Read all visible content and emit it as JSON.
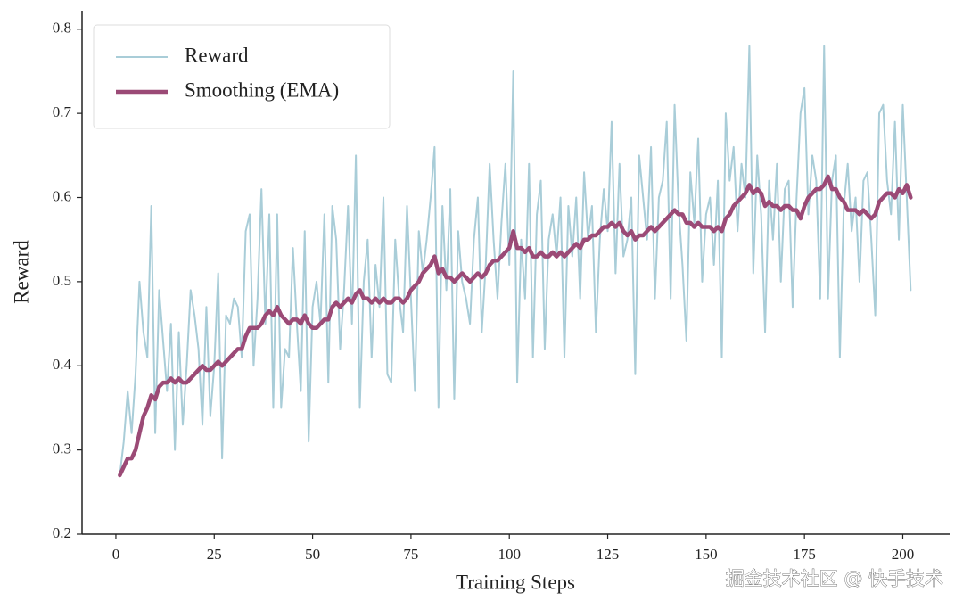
{
  "chart_data": {
    "type": "line",
    "xlabel": "Training Steps",
    "ylabel": "Reward",
    "watermark": "掘金技术社区 @ 快手技术",
    "legend": "upper left",
    "xlim": [
      -8.6,
      211.9
    ],
    "ylim": [
      0.2,
      0.822
    ],
    "xticks": [
      0,
      25,
      50,
      75,
      100,
      125,
      150,
      175,
      200
    ],
    "yticks": [
      0.2,
      0.3,
      0.4,
      0.5,
      0.6,
      0.7,
      0.8
    ],
    "x": [
      1,
      2,
      3,
      4,
      5,
      6,
      7,
      8,
      9,
      10,
      11,
      12,
      13,
      14,
      15,
      16,
      17,
      18,
      19,
      20,
      21,
      22,
      23,
      24,
      25,
      26,
      27,
      28,
      29,
      30,
      31,
      32,
      33,
      34,
      35,
      36,
      37,
      38,
      39,
      40,
      41,
      42,
      43,
      44,
      45,
      46,
      47,
      48,
      49,
      50,
      51,
      52,
      53,
      54,
      55,
      56,
      57,
      58,
      59,
      60,
      61,
      62,
      63,
      64,
      65,
      66,
      67,
      68,
      69,
      70,
      71,
      72,
      73,
      74,
      75,
      76,
      77,
      78,
      79,
      80,
      81,
      82,
      83,
      84,
      85,
      86,
      87,
      88,
      89,
      90,
      91,
      92,
      93,
      94,
      95,
      96,
      97,
      98,
      99,
      100,
      101,
      102,
      103,
      104,
      105,
      106,
      107,
      108,
      109,
      110,
      111,
      112,
      113,
      114,
      115,
      116,
      117,
      118,
      119,
      120,
      121,
      122,
      123,
      124,
      125,
      126,
      127,
      128,
      129,
      130,
      131,
      132,
      133,
      134,
      135,
      136,
      137,
      138,
      139,
      140,
      141,
      142,
      143,
      144,
      145,
      146,
      147,
      148,
      149,
      150,
      151,
      152,
      153,
      154,
      155,
      156,
      157,
      158,
      159,
      160,
      161,
      162,
      163,
      164,
      165,
      166,
      167,
      168,
      169,
      170,
      171,
      172,
      173,
      174,
      175,
      176,
      177,
      178,
      179,
      180,
      181,
      182,
      183,
      184,
      185,
      186,
      187,
      188,
      189,
      190,
      191,
      192,
      193,
      194,
      195,
      196,
      197,
      198,
      199,
      200,
      201,
      202
    ],
    "series": [
      {
        "name": "Reward",
        "color": "#a9cdd8",
        "width": 2,
        "values": [
          0.27,
          0.31,
          0.37,
          0.32,
          0.39,
          0.5,
          0.44,
          0.41,
          0.59,
          0.32,
          0.49,
          0.43,
          0.37,
          0.45,
          0.3,
          0.44,
          0.33,
          0.4,
          0.49,
          0.46,
          0.42,
          0.33,
          0.47,
          0.34,
          0.4,
          0.51,
          0.29,
          0.46,
          0.45,
          0.48,
          0.47,
          0.41,
          0.56,
          0.58,
          0.4,
          0.48,
          0.61,
          0.45,
          0.58,
          0.35,
          0.58,
          0.35,
          0.42,
          0.41,
          0.54,
          0.45,
          0.37,
          0.56,
          0.31,
          0.47,
          0.5,
          0.45,
          0.58,
          0.38,
          0.59,
          0.55,
          0.42,
          0.49,
          0.59,
          0.45,
          0.65,
          0.35,
          0.5,
          0.55,
          0.41,
          0.52,
          0.47,
          0.6,
          0.39,
          0.38,
          0.55,
          0.48,
          0.44,
          0.59,
          0.48,
          0.37,
          0.56,
          0.51,
          0.55,
          0.6,
          0.66,
          0.35,
          0.59,
          0.49,
          0.61,
          0.36,
          0.56,
          0.5,
          0.48,
          0.45,
          0.55,
          0.6,
          0.44,
          0.52,
          0.64,
          0.55,
          0.48,
          0.57,
          0.64,
          0.52,
          0.75,
          0.38,
          0.55,
          0.48,
          0.64,
          0.41,
          0.58,
          0.62,
          0.42,
          0.55,
          0.58,
          0.53,
          0.6,
          0.41,
          0.59,
          0.53,
          0.6,
          0.48,
          0.63,
          0.55,
          0.59,
          0.44,
          0.55,
          0.61,
          0.56,
          0.69,
          0.51,
          0.64,
          0.53,
          0.55,
          0.6,
          0.39,
          0.65,
          0.6,
          0.55,
          0.66,
          0.48,
          0.6,
          0.62,
          0.69,
          0.48,
          0.71,
          0.59,
          0.52,
          0.43,
          0.63,
          0.57,
          0.67,
          0.5,
          0.58,
          0.6,
          0.52,
          0.62,
          0.41,
          0.7,
          0.62,
          0.66,
          0.56,
          0.64,
          0.6,
          0.78,
          0.51,
          0.65,
          0.58,
          0.44,
          0.62,
          0.55,
          0.64,
          0.5,
          0.61,
          0.62,
          0.47,
          0.6,
          0.7,
          0.73,
          0.58,
          0.65,
          0.62,
          0.48,
          0.78,
          0.48,
          0.62,
          0.65,
          0.41,
          0.59,
          0.64,
          0.56,
          0.6,
          0.5,
          0.62,
          0.63,
          0.55,
          0.46,
          0.7,
          0.71,
          0.62,
          0.58,
          0.69,
          0.55,
          0.71,
          0.6,
          0.49
        ]
      },
      {
        "name": "Smoothing (EMA)",
        "color": "#9b4a76",
        "width": 4.5,
        "values": [
          0.27,
          0.28,
          0.29,
          0.29,
          0.3,
          0.32,
          0.34,
          0.35,
          0.365,
          0.36,
          0.375,
          0.38,
          0.38,
          0.385,
          0.38,
          0.385,
          0.38,
          0.38,
          0.385,
          0.39,
          0.395,
          0.4,
          0.395,
          0.395,
          0.4,
          0.405,
          0.4,
          0.405,
          0.41,
          0.415,
          0.42,
          0.42,
          0.435,
          0.445,
          0.445,
          0.445,
          0.45,
          0.46,
          0.465,
          0.46,
          0.47,
          0.46,
          0.455,
          0.45,
          0.455,
          0.455,
          0.45,
          0.46,
          0.45,
          0.445,
          0.445,
          0.45,
          0.455,
          0.455,
          0.47,
          0.475,
          0.47,
          0.475,
          0.48,
          0.475,
          0.485,
          0.49,
          0.48,
          0.48,
          0.475,
          0.48,
          0.475,
          0.48,
          0.475,
          0.475,
          0.48,
          0.48,
          0.475,
          0.48,
          0.49,
          0.495,
          0.5,
          0.51,
          0.515,
          0.52,
          0.53,
          0.51,
          0.515,
          0.505,
          0.505,
          0.5,
          0.505,
          0.51,
          0.505,
          0.5,
          0.505,
          0.51,
          0.505,
          0.51,
          0.52,
          0.525,
          0.525,
          0.53,
          0.535,
          0.54,
          0.56,
          0.54,
          0.54,
          0.535,
          0.54,
          0.53,
          0.53,
          0.535,
          0.53,
          0.53,
          0.535,
          0.53,
          0.535,
          0.53,
          0.535,
          0.54,
          0.545,
          0.54,
          0.55,
          0.55,
          0.555,
          0.555,
          0.56,
          0.565,
          0.565,
          0.57,
          0.565,
          0.57,
          0.56,
          0.555,
          0.56,
          0.55,
          0.555,
          0.555,
          0.56,
          0.565,
          0.56,
          0.565,
          0.57,
          0.575,
          0.58,
          0.585,
          0.58,
          0.58,
          0.57,
          0.57,
          0.565,
          0.57,
          0.565,
          0.565,
          0.565,
          0.56,
          0.565,
          0.56,
          0.575,
          0.58,
          0.59,
          0.595,
          0.6,
          0.605,
          0.615,
          0.605,
          0.61,
          0.605,
          0.59,
          0.595,
          0.59,
          0.59,
          0.585,
          0.59,
          0.59,
          0.585,
          0.585,
          0.575,
          0.59,
          0.6,
          0.605,
          0.61,
          0.61,
          0.615,
          0.625,
          0.61,
          0.61,
          0.6,
          0.595,
          0.585,
          0.585,
          0.585,
          0.58,
          0.585,
          0.58,
          0.575,
          0.58,
          0.595,
          0.6,
          0.605,
          0.605,
          0.6,
          0.61,
          0.605,
          0.615,
          0.6
        ]
      }
    ]
  }
}
